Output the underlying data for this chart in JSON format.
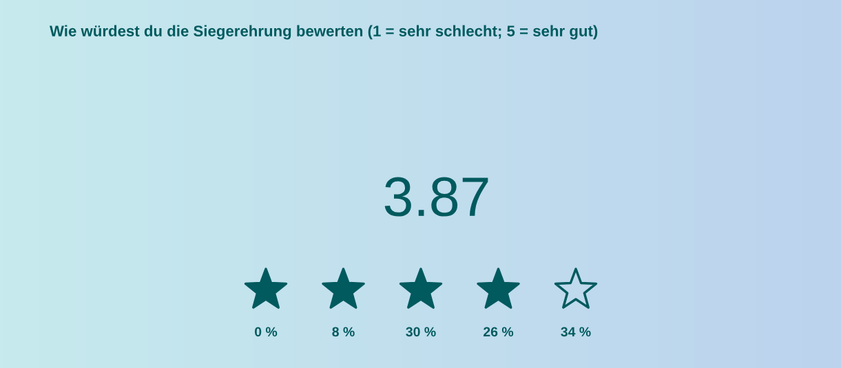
{
  "chart_data": {
    "type": "other",
    "title": "Wie würdest du die Siegerehrung bewerten (1 = sehr schlecht; 5 = sehr gut)",
    "annotations": [
      "3.87"
    ],
    "categories": [
      null,
      null,
      null,
      null,
      null
    ],
    "values": [
      0,
      8,
      30,
      26,
      34
    ],
    "value_labels": [
      "0 %",
      "8 %",
      "30 %",
      "26 %",
      "34 %"
    ],
    "colors": [
      "#005a5e",
      "#005a5e",
      "#005a5e",
      "#005a5e",
      null
    ]
  }
}
